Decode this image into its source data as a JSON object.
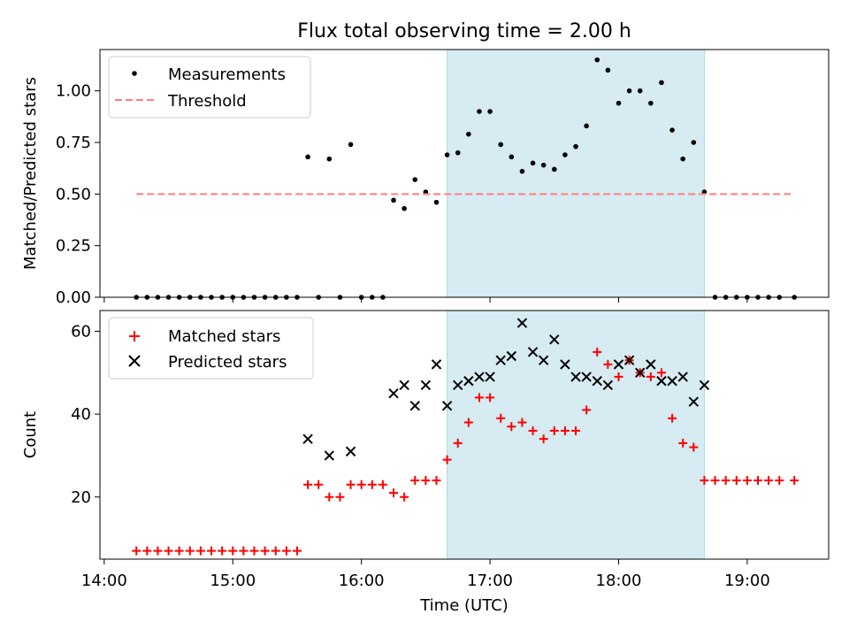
{
  "chart_data": [
    {
      "type": "scatter",
      "title": "Flux total observing time = 2.00 h",
      "xlabel": "",
      "ylabel": "Matched/Predicted stars",
      "ylim": [
        0,
        1.2
      ],
      "yticks": [
        "0.00",
        "0.25",
        "0.50",
        "0.75",
        "1.00"
      ],
      "legend_position": "upper-left",
      "shaded_x_range": [
        "16:40",
        "18:40"
      ],
      "series": [
        {
          "name": "Measurements",
          "marker": "dot",
          "color": "#000000",
          "points": [
            [
              "14:15",
              0
            ],
            [
              "14:20",
              0
            ],
            [
              "14:25",
              0
            ],
            [
              "14:30",
              0
            ],
            [
              "14:35",
              0
            ],
            [
              "14:40",
              0
            ],
            [
              "14:45",
              0
            ],
            [
              "14:50",
              0
            ],
            [
              "14:55",
              0
            ],
            [
              "15:00",
              0
            ],
            [
              "15:05",
              0
            ],
            [
              "15:10",
              0
            ],
            [
              "15:15",
              0
            ],
            [
              "15:20",
              0
            ],
            [
              "15:25",
              0
            ],
            [
              "15:30",
              0
            ],
            [
              "15:35",
              0.68
            ],
            [
              "15:40",
              0
            ],
            [
              "15:45",
              0.67
            ],
            [
              "15:50",
              0
            ],
            [
              "15:55",
              0.74
            ],
            [
              "16:00",
              0
            ],
            [
              "16:05",
              0
            ],
            [
              "16:10",
              0
            ],
            [
              "16:15",
              0.47
            ],
            [
              "16:20",
              0.43
            ],
            [
              "16:25",
              0.57
            ],
            [
              "16:30",
              0.51
            ],
            [
              "16:35",
              0.46
            ],
            [
              "16:40",
              0.69
            ],
            [
              "16:45",
              0.7
            ],
            [
              "16:50",
              0.79
            ],
            [
              "16:55",
              0.9
            ],
            [
              "17:00",
              0.9
            ],
            [
              "17:05",
              0.74
            ],
            [
              "17:10",
              0.68
            ],
            [
              "17:15",
              0.61
            ],
            [
              "17:20",
              0.65
            ],
            [
              "17:25",
              0.64
            ],
            [
              "17:30",
              0.62
            ],
            [
              "17:35",
              0.69
            ],
            [
              "17:40",
              0.73
            ],
            [
              "17:45",
              0.83
            ],
            [
              "17:50",
              1.15
            ],
            [
              "17:55",
              1.1
            ],
            [
              "18:00",
              0.94
            ],
            [
              "18:05",
              1.0
            ],
            [
              "18:10",
              1.0
            ],
            [
              "18:15",
              0.94
            ],
            [
              "18:20",
              1.04
            ],
            [
              "18:25",
              0.81
            ],
            [
              "18:30",
              0.67
            ],
            [
              "18:35",
              0.75
            ],
            [
              "18:40",
              0.51
            ],
            [
              "18:45",
              0
            ],
            [
              "18:50",
              0
            ],
            [
              "18:55",
              0
            ],
            [
              "19:00",
              0
            ],
            [
              "19:05",
              0
            ],
            [
              "19:10",
              0
            ],
            [
              "19:15",
              0
            ],
            [
              "19:22",
              0
            ]
          ]
        },
        {
          "name": "Threshold",
          "marker": "dashed-line",
          "color": "#ff7f7f",
          "points": [
            [
              "14:15",
              0.5
            ],
            [
              "19:22",
              0.5
            ]
          ]
        }
      ]
    },
    {
      "type": "scatter",
      "title": "",
      "xlabel": "Time (UTC)",
      "ylabel": "Count",
      "ylim": [
        5,
        65
      ],
      "yticks": [
        "20",
        "40",
        "60"
      ],
      "xticks": [
        "14:00",
        "15:00",
        "16:00",
        "17:00",
        "18:00",
        "19:00"
      ],
      "xlim": [
        "13:58",
        "19:38"
      ],
      "legend_position": "upper-left",
      "shaded_x_range": [
        "16:40",
        "18:40"
      ],
      "series": [
        {
          "name": "Matched stars",
          "marker": "plus",
          "color": "#ff0000",
          "points": [
            [
              "14:15",
              7
            ],
            [
              "14:20",
              7
            ],
            [
              "14:25",
              7
            ],
            [
              "14:30",
              7
            ],
            [
              "14:35",
              7
            ],
            [
              "14:40",
              7
            ],
            [
              "14:45",
              7
            ],
            [
              "14:50",
              7
            ],
            [
              "14:55",
              7
            ],
            [
              "15:00",
              7
            ],
            [
              "15:05",
              7
            ],
            [
              "15:10",
              7
            ],
            [
              "15:15",
              7
            ],
            [
              "15:20",
              7
            ],
            [
              "15:25",
              7
            ],
            [
              "15:30",
              7
            ],
            [
              "15:35",
              23
            ],
            [
              "15:40",
              23
            ],
            [
              "15:45",
              20
            ],
            [
              "15:50",
              20
            ],
            [
              "15:55",
              23
            ],
            [
              "16:00",
              23
            ],
            [
              "16:05",
              23
            ],
            [
              "16:10",
              23
            ],
            [
              "16:15",
              21
            ],
            [
              "16:20",
              20
            ],
            [
              "16:25",
              24
            ],
            [
              "16:30",
              24
            ],
            [
              "16:35",
              24
            ],
            [
              "16:40",
              29
            ],
            [
              "16:45",
              33
            ],
            [
              "16:50",
              38
            ],
            [
              "16:55",
              44
            ],
            [
              "17:00",
              44
            ],
            [
              "17:05",
              39
            ],
            [
              "17:10",
              37
            ],
            [
              "17:15",
              38
            ],
            [
              "17:20",
              36
            ],
            [
              "17:25",
              34
            ],
            [
              "17:30",
              36
            ],
            [
              "17:35",
              36
            ],
            [
              "17:40",
              36
            ],
            [
              "17:45",
              41
            ],
            [
              "17:50",
              55
            ],
            [
              "17:55",
              52
            ],
            [
              "18:00",
              49
            ],
            [
              "18:05",
              53
            ],
            [
              "18:10",
              50
            ],
            [
              "18:15",
              49
            ],
            [
              "18:20",
              50
            ],
            [
              "18:25",
              39
            ],
            [
              "18:30",
              33
            ],
            [
              "18:35",
              32
            ],
            [
              "18:40",
              24
            ],
            [
              "18:45",
              24
            ],
            [
              "18:50",
              24
            ],
            [
              "18:55",
              24
            ],
            [
              "19:00",
              24
            ],
            [
              "19:05",
              24
            ],
            [
              "19:10",
              24
            ],
            [
              "19:15",
              24
            ],
            [
              "19:22",
              24
            ]
          ]
        },
        {
          "name": "Predicted stars",
          "marker": "x",
          "color": "#000000",
          "points": [
            [
              "15:35",
              34
            ],
            [
              "15:45",
              30
            ],
            [
              "15:55",
              31
            ],
            [
              "16:15",
              45
            ],
            [
              "16:20",
              47
            ],
            [
              "16:25",
              42
            ],
            [
              "16:30",
              47
            ],
            [
              "16:35",
              52
            ],
            [
              "16:40",
              42
            ],
            [
              "16:45",
              47
            ],
            [
              "16:50",
              48
            ],
            [
              "16:55",
              49
            ],
            [
              "17:00",
              49
            ],
            [
              "17:05",
              53
            ],
            [
              "17:10",
              54
            ],
            [
              "17:15",
              62
            ],
            [
              "17:20",
              55
            ],
            [
              "17:25",
              53
            ],
            [
              "17:30",
              58
            ],
            [
              "17:35",
              52
            ],
            [
              "17:40",
              49
            ],
            [
              "17:45",
              49
            ],
            [
              "17:50",
              48
            ],
            [
              "17:55",
              47
            ],
            [
              "18:00",
              52
            ],
            [
              "18:05",
              53
            ],
            [
              "18:10",
              50
            ],
            [
              "18:15",
              52
            ],
            [
              "18:20",
              48
            ],
            [
              "18:25",
              48
            ],
            [
              "18:30",
              49
            ],
            [
              "18:35",
              43
            ],
            [
              "18:40",
              47
            ]
          ]
        }
      ]
    }
  ]
}
